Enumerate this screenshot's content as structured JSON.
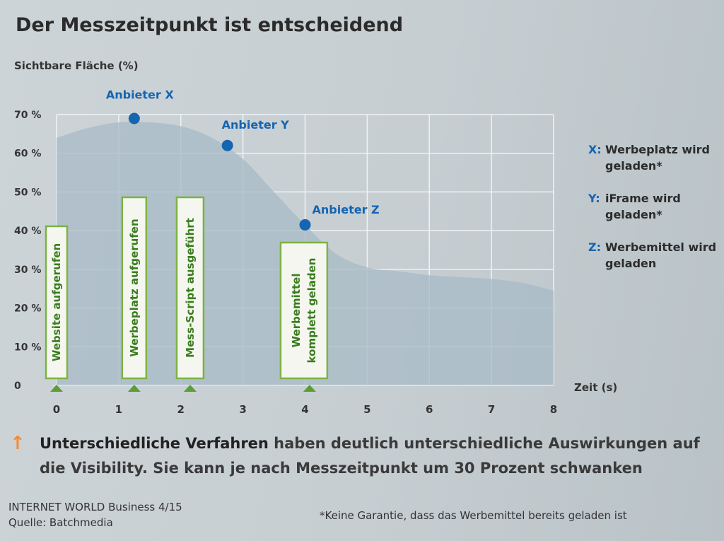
{
  "title": "Der Messzeitpunkt ist entscheidend",
  "chart_data": {
    "type": "area",
    "ylabel": "Sichtbare Fläche (%)",
    "xlabel": "Zeit (s)",
    "xlim": [
      0,
      8
    ],
    "ylim": [
      0,
      70
    ],
    "x_ticks": [
      "0",
      "1",
      "2",
      "3",
      "4",
      "5",
      "6",
      "7",
      "8"
    ],
    "y_ticks": [
      {
        "value": 0,
        "label": "0"
      },
      {
        "value": 10,
        "label": "10 %"
      },
      {
        "value": 20,
        "label": "20 %"
      },
      {
        "value": 30,
        "label": "30 %"
      },
      {
        "value": 40,
        "label": "40 %"
      },
      {
        "value": 50,
        "label": "50 %"
      },
      {
        "value": 60,
        "label": "60 %"
      },
      {
        "value": 70,
        "label": "70 %"
      }
    ],
    "grid": true,
    "area": {
      "x": [
        0,
        0.5,
        1,
        1.5,
        2,
        2.5,
        3,
        3.5,
        4,
        4.5,
        5,
        5.5,
        6,
        6.5,
        7,
        7.5,
        8
      ],
      "y": [
        64,
        66.5,
        68,
        68,
        67,
        64,
        58.5,
        50,
        41.5,
        34,
        30.5,
        29.5,
        28.5,
        28,
        27.5,
        26.5,
        24.5
      ]
    },
    "points": [
      {
        "label": "Anbieter X",
        "x": 1.25,
        "y": 69
      },
      {
        "label": "Anbieter Y",
        "x": 2.75,
        "y": 62
      },
      {
        "label": "Anbieter Z",
        "x": 4.0,
        "y": 41.5
      }
    ],
    "events": [
      {
        "label": "Website aufgerufen",
        "x": 0
      },
      {
        "label": "Werbeplatz aufgerufen",
        "x": 1.25
      },
      {
        "label": "Mess-Script ausgeführt",
        "x": 2.15
      },
      {
        "label": "Werbemittel komplett geladen",
        "x": 4.05
      }
    ],
    "colors": {
      "area": "#a9bbc7",
      "grid": "#eef3f5",
      "point": "#1565b0",
      "event_border": "#7cb342",
      "marker": "#5a9e34"
    }
  },
  "legend": [
    {
      "key": "X:",
      "text": "Werbeplatz wird geladen*"
    },
    {
      "key": "Y:",
      "text": "iFrame wird geladen*"
    },
    {
      "key": "Z:",
      "text": "Werbemittel wird geladen"
    }
  ],
  "note": {
    "icon": "arrow-up-icon",
    "bold": "Unterschiedliche Verfahren",
    "text": " haben deutlich unterschiedliche Auswirkungen auf die Visibility. Sie kann je nach Messzeitpunkt um 30 Prozent schwanken",
    "icon_glyph": "↑"
  },
  "source": {
    "line1": "INTERNET WORLD Business 4/15",
    "line2": "Quelle: Batchmedia"
  },
  "footnote": "*Keine Garantie, dass das Werbemittel bereits geladen ist"
}
